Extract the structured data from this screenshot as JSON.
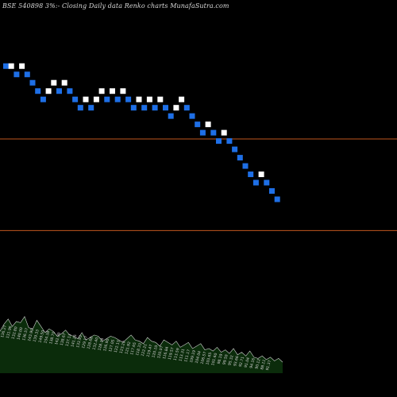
{
  "chart_data": {
    "type": "renko",
    "title": "BSE 540898 3%:-   Closing Daily data  Renko  charts MunafaSutra.com",
    "colors": {
      "up_brick": "#ffffff",
      "down_brick": "#1e6fe6",
      "reference_line": "#c0561e",
      "volume_fill": "#0b2c0b",
      "volume_outline": "#ffffff",
      "background": "#000000"
    },
    "reference_levels": [
      {
        "value": 1.22
      },
      {
        "value": 1.0
      }
    ],
    "y_axis_range": [
      0.6,
      1.55
    ],
    "bricks": [
      {
        "dir": "down",
        "value": 1.395
      },
      {
        "dir": "up",
        "value": 1.395
      },
      {
        "dir": "down",
        "value": 1.375
      },
      {
        "dir": "up",
        "value": 1.395
      },
      {
        "dir": "down",
        "value": 1.375
      },
      {
        "dir": "down",
        "value": 1.355
      },
      {
        "dir": "down",
        "value": 1.335
      },
      {
        "dir": "down",
        "value": 1.315
      },
      {
        "dir": "up",
        "value": 1.335
      },
      {
        "dir": "up",
        "value": 1.355
      },
      {
        "dir": "down",
        "value": 1.335
      },
      {
        "dir": "up",
        "value": 1.355
      },
      {
        "dir": "down",
        "value": 1.335
      },
      {
        "dir": "down",
        "value": 1.315
      },
      {
        "dir": "down",
        "value": 1.295
      },
      {
        "dir": "up",
        "value": 1.315
      },
      {
        "dir": "down",
        "value": 1.295
      },
      {
        "dir": "up",
        "value": 1.315
      },
      {
        "dir": "up",
        "value": 1.335
      },
      {
        "dir": "down",
        "value": 1.315
      },
      {
        "dir": "up",
        "value": 1.335
      },
      {
        "dir": "down",
        "value": 1.315
      },
      {
        "dir": "up",
        "value": 1.335
      },
      {
        "dir": "down",
        "value": 1.315
      },
      {
        "dir": "down",
        "value": 1.295
      },
      {
        "dir": "up",
        "value": 1.315
      },
      {
        "dir": "down",
        "value": 1.295
      },
      {
        "dir": "up",
        "value": 1.315
      },
      {
        "dir": "down",
        "value": 1.295
      },
      {
        "dir": "up",
        "value": 1.315
      },
      {
        "dir": "down",
        "value": 1.295
      },
      {
        "dir": "down",
        "value": 1.275
      },
      {
        "dir": "up",
        "value": 1.295
      },
      {
        "dir": "up",
        "value": 1.315
      },
      {
        "dir": "down",
        "value": 1.295
      },
      {
        "dir": "down",
        "value": 1.275
      },
      {
        "dir": "down",
        "value": 1.255
      },
      {
        "dir": "down",
        "value": 1.235
      },
      {
        "dir": "up",
        "value": 1.255
      },
      {
        "dir": "down",
        "value": 1.235
      },
      {
        "dir": "down",
        "value": 1.215
      },
      {
        "dir": "up",
        "value": 1.235
      },
      {
        "dir": "down",
        "value": 1.215
      },
      {
        "dir": "down",
        "value": 1.195
      },
      {
        "dir": "down",
        "value": 1.175
      },
      {
        "dir": "down",
        "value": 1.155
      },
      {
        "dir": "down",
        "value": 1.135
      },
      {
        "dir": "down",
        "value": 1.115
      },
      {
        "dir": "up",
        "value": 1.135
      },
      {
        "dir": "down",
        "value": 1.115
      },
      {
        "dir": "down",
        "value": 1.095
      },
      {
        "dir": "down",
        "value": 1.075
      }
    ],
    "volume": [
      34,
      40,
      44,
      38,
      42,
      41,
      46,
      37,
      36,
      43,
      38,
      33,
      36,
      34,
      30,
      32,
      35,
      31,
      30,
      28,
      33,
      27,
      29,
      31,
      30,
      26,
      28,
      30,
      29,
      27,
      25,
      28,
      31,
      27,
      26,
      24,
      29,
      26,
      25,
      22,
      27,
      25,
      23,
      26,
      21,
      23,
      25,
      20,
      22,
      24,
      19,
      20,
      18,
      21,
      17,
      19,
      16,
      20,
      15,
      17,
      14,
      18,
      13,
      12,
      14,
      11,
      13,
      10,
      12,
      9
    ],
    "volume_labels": [
      "136.27",
      "131.96",
      "132.80",
      "140.00",
      "136.57",
      "143.90",
      "139.33",
      "149.50",
      "154.38",
      "138.70",
      "142.00",
      "138.67",
      "137.13",
      "141.25",
      "133.93",
      "129.17",
      "128.68",
      "132.40",
      "128.14",
      "126.90",
      "127.05",
      "122.13",
      "123.20",
      "121.92",
      "117.65",
      "118.33",
      "122.21",
      "119.47",
      "120.10",
      "120.07",
      "116.84",
      "119.57",
      "113.59",
      "113.31",
      "111.17",
      "109.19",
      "104.04",
      "106.57",
      "103.65",
      "101.60",
      "98.19",
      "99.50",
      "95.32",
      "93.66",
      "92.71",
      "91.04",
      "94.16",
      "90.12",
      "88.11",
      "91.37"
    ]
  }
}
